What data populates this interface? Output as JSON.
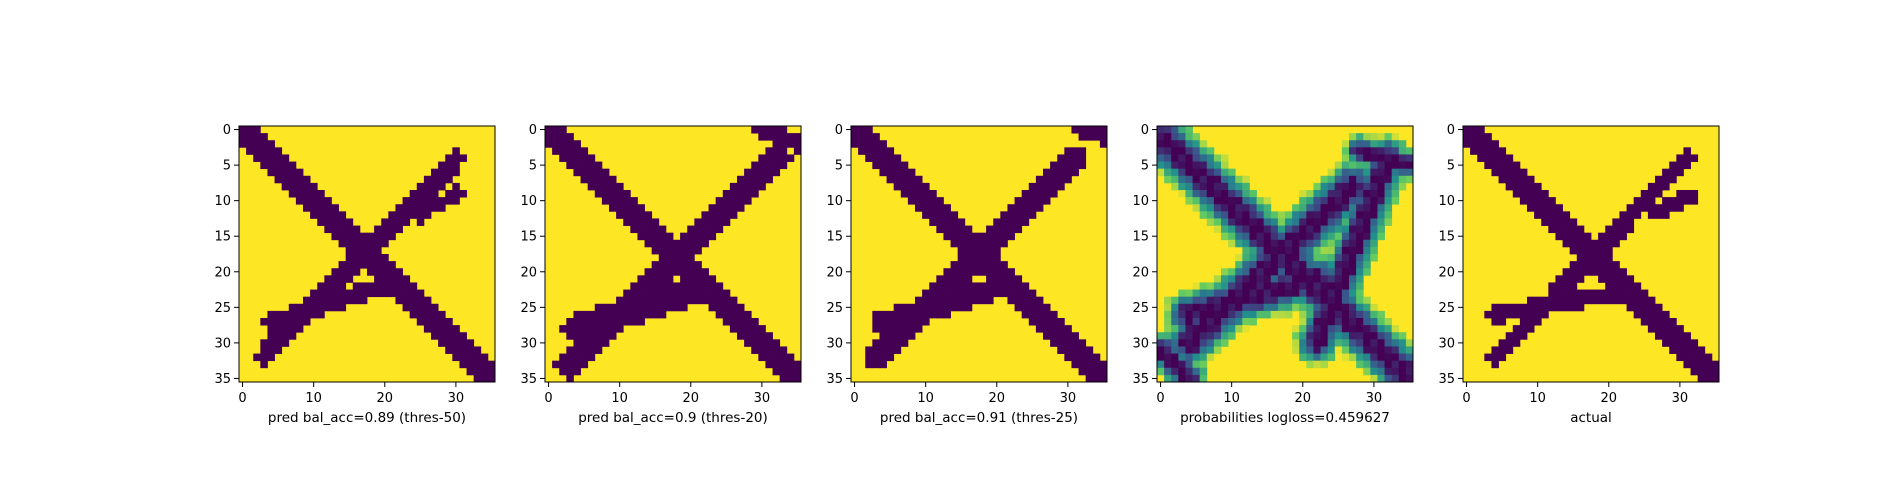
{
  "figure_background": "#ffffff",
  "colormap": {
    "name": "viridis",
    "stops": [
      "#440154",
      "#3b528b",
      "#21918c",
      "#5ec962",
      "#fde725"
    ]
  },
  "chart_data": [
    {
      "type": "heatmap",
      "xlabel": "pred bal_acc=0.89 (thres-50)",
      "xlim": [
        0,
        35
      ],
      "ylim": [
        0,
        35
      ],
      "xticks": [
        0,
        10,
        20,
        30
      ],
      "yticks": [
        0,
        5,
        10,
        15,
        20,
        25,
        30,
        35
      ],
      "grid": false,
      "kind": "binary",
      "segments": [
        {
          "x0": 0,
          "y0": 0,
          "x1": 35,
          "y1": 35,
          "halfwidth": 1.5
        },
        {
          "x0": 3,
          "y0": 32,
          "x1": 30,
          "y1": 4,
          "halfwidth": 1.4
        },
        {
          "x0": 4,
          "y0": 27,
          "x1": 20,
          "y1": 22,
          "halfwidth": 1.3
        },
        {
          "x0": 25,
          "y0": 12,
          "x1": 30,
          "y1": 9,
          "halfwidth": 1.0
        }
      ]
    },
    {
      "type": "heatmap",
      "xlabel": "pred bal_acc=0.9 (thres-20)",
      "xlim": [
        0,
        35
      ],
      "ylim": [
        0,
        35
      ],
      "xticks": [
        0,
        10,
        20,
        30
      ],
      "yticks": [
        0,
        5,
        10,
        15,
        20,
        25,
        30,
        35
      ],
      "grid": false,
      "kind": "binary",
      "segments": [
        {
          "x0": 0,
          "y0": 0,
          "x1": 35,
          "y1": 35,
          "halfwidth": 2.0
        },
        {
          "x0": 3,
          "y0": 33,
          "x1": 32,
          "y1": 4,
          "halfwidth": 2.0
        },
        {
          "x0": 4,
          "y0": 28,
          "x1": 22,
          "y1": 22,
          "halfwidth": 2.0
        },
        {
          "x0": 30,
          "y0": 0,
          "x1": 35,
          "y1": 2,
          "halfwidth": 1.2
        }
      ]
    },
    {
      "type": "heatmap",
      "xlabel": "pred bal_acc=0.91 (thres-25)",
      "xlim": [
        0,
        35
      ],
      "ylim": [
        0,
        35
      ],
      "xticks": [
        0,
        10,
        20,
        30
      ],
      "yticks": [
        0,
        5,
        10,
        15,
        20,
        25,
        30,
        35
      ],
      "grid": false,
      "kind": "binary",
      "segments": [
        {
          "x0": 0,
          "y0": 0,
          "x1": 35,
          "y1": 35,
          "halfwidth": 1.8
        },
        {
          "x0": 3,
          "y0": 32,
          "x1": 31,
          "y1": 4,
          "halfwidth": 1.8
        },
        {
          "x0": 4,
          "y0": 27,
          "x1": 21,
          "y1": 22,
          "halfwidth": 1.6
        },
        {
          "x0": 32,
          "y0": 0,
          "x1": 35,
          "y1": 1,
          "halfwidth": 1.0
        }
      ]
    },
    {
      "type": "heatmap",
      "xlabel": "probabilities logloss=0.459627",
      "xlim": [
        0,
        35
      ],
      "ylim": [
        0,
        35
      ],
      "xticks": [
        0,
        10,
        20,
        30
      ],
      "yticks": [
        0,
        5,
        10,
        15,
        20,
        25,
        30,
        35
      ],
      "grid": false,
      "kind": "probability",
      "segments": [
        {
          "x0": 0,
          "y0": 1,
          "x1": 35,
          "y1": 35,
          "halfwidth": 2.6
        },
        {
          "x0": 4,
          "y0": 30,
          "x1": 27,
          "y1": 8,
          "halfwidth": 2.6
        },
        {
          "x0": 4,
          "y0": 26,
          "x1": 22,
          "y1": 21,
          "halfwidth": 2.4
        },
        {
          "x0": 22,
          "y0": 30,
          "x1": 32,
          "y1": 4,
          "halfwidth": 2.2
        },
        {
          "x0": 28,
          "y0": 3,
          "x1": 35,
          "y1": 5,
          "halfwidth": 1.6
        },
        {
          "x0": 0,
          "y0": 31,
          "x1": 4,
          "y1": 35,
          "halfwidth": 1.8
        }
      ]
    },
    {
      "type": "heatmap",
      "xlabel": "actual",
      "xlim": [
        0,
        35
      ],
      "ylim": [
        0,
        35
      ],
      "xticks": [
        0,
        10,
        20,
        30
      ],
      "yticks": [
        0,
        5,
        10,
        15,
        20,
        25,
        30,
        35
      ],
      "grid": false,
      "kind": "binary",
      "segments": [
        {
          "x0": 0,
          "y0": 0,
          "x1": 35,
          "y1": 35,
          "halfwidth": 1.5
        },
        {
          "x0": 4,
          "y0": 32,
          "x1": 31,
          "y1": 4,
          "halfwidth": 1.2
        },
        {
          "x0": 4,
          "y0": 26,
          "x1": 21,
          "y1": 23,
          "halfwidth": 1.2
        },
        {
          "x0": 26,
          "y0": 12,
          "x1": 32,
          "y1": 9,
          "halfwidth": 0.9
        }
      ]
    }
  ]
}
